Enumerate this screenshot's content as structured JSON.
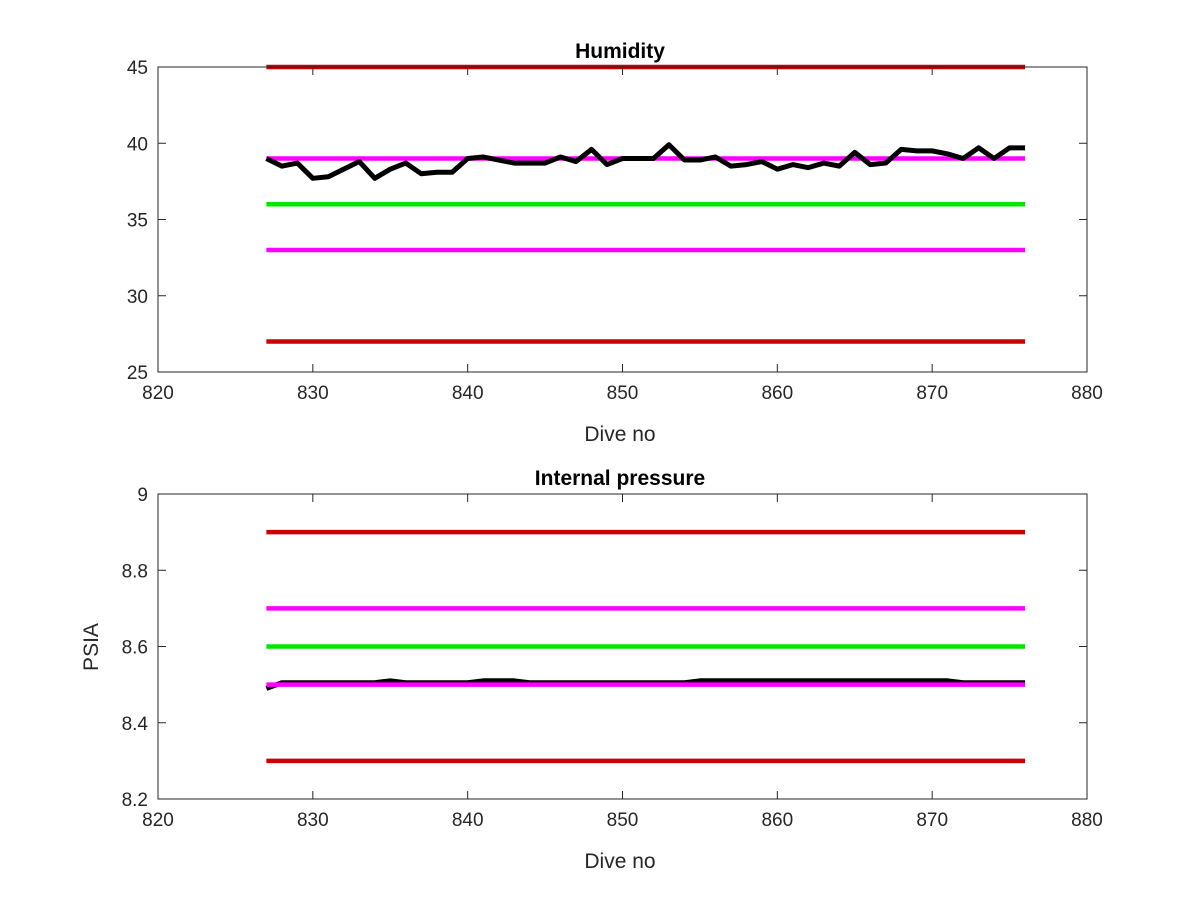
{
  "chart_data": [
    {
      "type": "line",
      "title": "Humidity",
      "xlabel": "Dive no",
      "ylabel": "",
      "xlim": [
        820,
        880
      ],
      "ylim": [
        25,
        45
      ],
      "xticks": [
        820,
        830,
        840,
        850,
        860,
        870,
        880
      ],
      "yticks": [
        25,
        30,
        35,
        40,
        45
      ],
      "grid": false,
      "series": [
        {
          "color": "#cc0000",
          "x": [
            827,
            876
          ],
          "y": [
            45,
            45
          ]
        },
        {
          "color": "#ff00ff",
          "x": [
            827,
            876
          ],
          "y": [
            39,
            39
          ]
        },
        {
          "color": "#00e600",
          "x": [
            827,
            876
          ],
          "y": [
            36,
            36
          ]
        },
        {
          "color": "#ff00ff",
          "x": [
            827,
            876
          ],
          "y": [
            33,
            33
          ]
        },
        {
          "color": "#cc0000",
          "x": [
            827,
            876
          ],
          "y": [
            27,
            27
          ]
        },
        {
          "color": "#000000",
          "x": [
            827,
            828,
            829,
            830,
            831,
            832,
            833,
            834,
            835,
            836,
            837,
            838,
            839,
            840,
            841,
            842,
            843,
            844,
            845,
            846,
            847,
            848,
            849,
            850,
            851,
            852,
            853,
            854,
            855,
            856,
            857,
            858,
            859,
            860,
            861,
            862,
            863,
            864,
            865,
            866,
            867,
            868,
            869,
            870,
            871,
            872,
            873,
            874,
            875,
            876
          ],
          "y": [
            39.0,
            38.5,
            38.7,
            37.7,
            37.8,
            38.3,
            38.8,
            37.7,
            38.3,
            38.7,
            38.0,
            38.1,
            38.1,
            39.0,
            39.1,
            38.9,
            38.7,
            38.7,
            38.7,
            39.1,
            38.8,
            39.6,
            38.6,
            39.0,
            39.0,
            39.0,
            39.9,
            38.9,
            38.9,
            39.1,
            38.5,
            38.6,
            38.8,
            38.3,
            38.6,
            38.4,
            38.7,
            38.5,
            39.4,
            38.6,
            38.7,
            39.6,
            39.5,
            39.5,
            39.3,
            39.0,
            39.7,
            39.0,
            39.7,
            39.7
          ]
        }
      ]
    },
    {
      "type": "line",
      "title": "Internal pressure",
      "xlabel": "Dive no",
      "ylabel": "PSIA",
      "xlim": [
        820,
        880
      ],
      "ylim": [
        8.2,
        9
      ],
      "xticks": [
        820,
        830,
        840,
        850,
        860,
        870,
        880
      ],
      "yticks": [
        8.2,
        8.4,
        8.6,
        8.8,
        9
      ],
      "grid": false,
      "series": [
        {
          "color": "#cc0000",
          "x": [
            827,
            876
          ],
          "y": [
            8.9,
            8.9
          ]
        },
        {
          "color": "#ff00ff",
          "x": [
            827,
            876
          ],
          "y": [
            8.7,
            8.7
          ]
        },
        {
          "color": "#00e600",
          "x": [
            827,
            876
          ],
          "y": [
            8.6,
            8.6
          ]
        },
        {
          "color": "#000000",
          "x": [
            827,
            828,
            830,
            832,
            834,
            835,
            836,
            838,
            840,
            841,
            842,
            843,
            844,
            846,
            848,
            850,
            852,
            854,
            855,
            856,
            858,
            860,
            862,
            864,
            866,
            868,
            870,
            871,
            872,
            874,
            876
          ],
          "y": [
            8.49,
            8.505,
            8.505,
            8.505,
            8.505,
            8.51,
            8.505,
            8.505,
            8.505,
            8.51,
            8.51,
            8.51,
            8.505,
            8.505,
            8.505,
            8.505,
            8.505,
            8.505,
            8.51,
            8.51,
            8.51,
            8.51,
            8.51,
            8.51,
            8.51,
            8.51,
            8.51,
            8.51,
            8.505,
            8.505,
            8.505
          ]
        },
        {
          "color": "#ff00ff",
          "x": [
            827,
            876
          ],
          "y": [
            8.5,
            8.5
          ]
        },
        {
          "color": "#cc0000",
          "x": [
            827,
            876
          ],
          "y": [
            8.3,
            8.3
          ]
        }
      ]
    }
  ]
}
